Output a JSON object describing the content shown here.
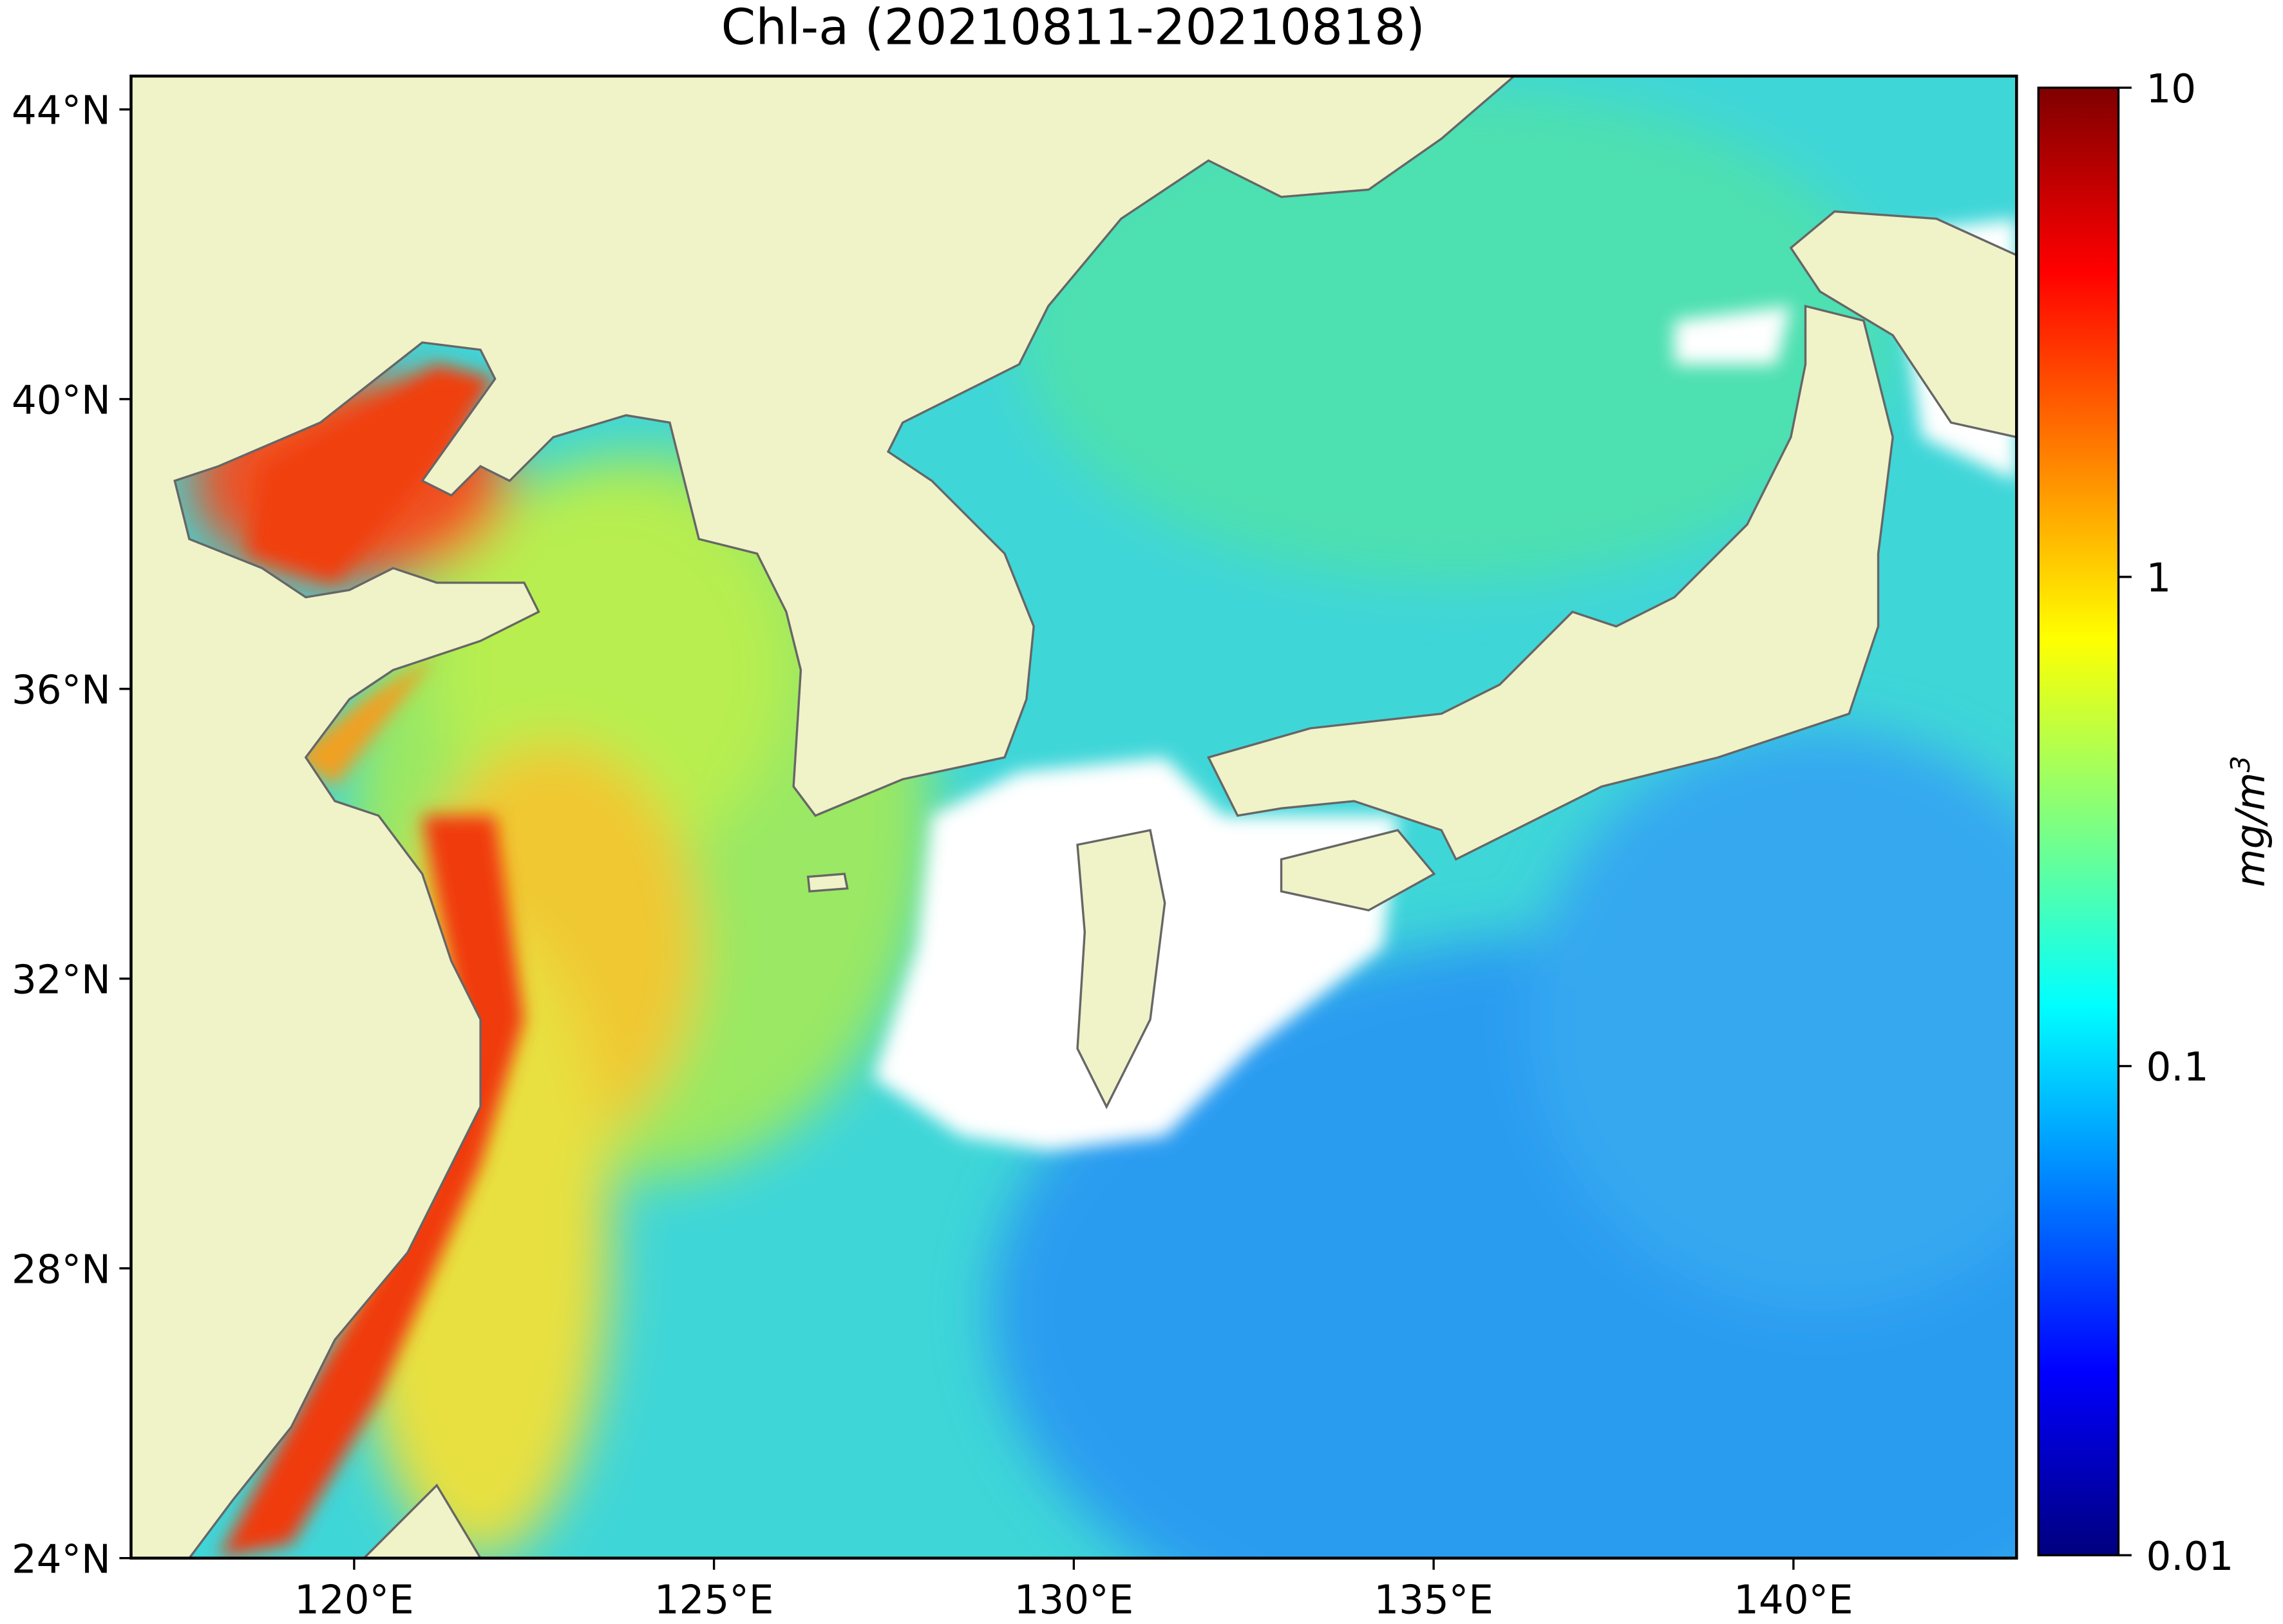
{
  "chart_data": {
    "type": "map",
    "title": "Chl-a (20210811-20210818)",
    "xlim": [
      116.9,
      143.1
    ],
    "ylim": [
      24,
      44.46
    ],
    "xticks": [
      {
        "value": 120,
        "label": "120°E"
      },
      {
        "value": 125,
        "label": "125°E"
      },
      {
        "value": 130,
        "label": "130°E"
      },
      {
        "value": 135,
        "label": "135°E"
      },
      {
        "value": 140,
        "label": "140°E"
      }
    ],
    "yticks": [
      {
        "value": 24,
        "label": "24°N"
      },
      {
        "value": 28,
        "label": "28°N"
      },
      {
        "value": 32,
        "label": "32°N"
      },
      {
        "value": 36,
        "label": "36°N"
      },
      {
        "value": 40,
        "label": "40°N"
      },
      {
        "value": 44,
        "label": "44°N"
      }
    ],
    "colorbar": {
      "label": "mg/m",
      "label_superscript": "3",
      "colormap": "jet",
      "log_scale": true,
      "lim": [
        0.01,
        10
      ],
      "ticks": [
        0.01,
        0.1,
        1,
        10
      ]
    }
  }
}
